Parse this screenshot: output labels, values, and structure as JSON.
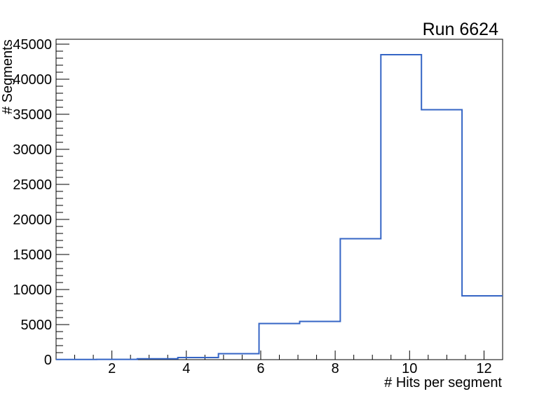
{
  "chart_data": {
    "type": "step-histogram",
    "title": "Run 6624",
    "xlabel": "# Hits per segment",
    "ylabel": "# Segments",
    "xlim": [
      0.5,
      12.5
    ],
    "ylim": [
      0,
      45700
    ],
    "bin_edges": [
      0.5,
      1.5909,
      2.6818,
      3.7727,
      4.8636,
      5.9545,
      7.0455,
      8.1364,
      9.2273,
      10.3182,
      11.4091,
      12.5
    ],
    "counts": [
      20,
      40,
      120,
      300,
      850,
      5150,
      5450,
      17250,
      43500,
      35650,
      9100
    ],
    "x_major_ticks": [
      2,
      4,
      6,
      8,
      10,
      12
    ],
    "x_minor_step": 0.5,
    "y_major_ticks": [
      0,
      5000,
      10000,
      15000,
      20000,
      25000,
      30000,
      35000,
      40000,
      45000
    ],
    "y_minor_step": 1000,
    "grid": false,
    "legend": null,
    "line_color": "#3565c5",
    "frame_color": "#000000",
    "background_color": "#ffffff"
  }
}
